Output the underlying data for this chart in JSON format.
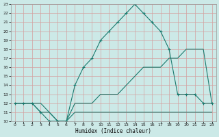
{
  "xlabel": "Humidex (Indice chaleur)",
  "background_color": "#cce9e7",
  "grid_color": "#b0d4d0",
  "line_color": "#1a7a6e",
  "xlim": [
    -0.5,
    23.5
  ],
  "ylim": [
    10,
    23
  ],
  "xticks": [
    0,
    1,
    2,
    3,
    4,
    5,
    6,
    7,
    8,
    9,
    10,
    11,
    12,
    13,
    14,
    15,
    16,
    17,
    18,
    19,
    20,
    21,
    22,
    23
  ],
  "yticks": [
    10,
    11,
    12,
    13,
    14,
    15,
    16,
    17,
    18,
    19,
    20,
    21,
    22,
    23
  ],
  "line1_x": [
    0,
    1,
    2,
    3,
    4,
    5,
    6,
    7,
    8,
    9,
    10,
    11,
    12,
    13,
    14,
    15,
    16,
    17,
    18,
    19,
    20,
    21,
    22,
    23
  ],
  "line1_y": [
    12,
    12,
    12,
    11,
    11,
    10,
    10,
    11,
    11,
    11,
    11,
    11,
    11,
    11,
    11,
    11,
    11,
    11,
    11,
    11,
    11,
    11,
    11,
    11
  ],
  "line2_x": [
    0,
    1,
    2,
    3,
    4,
    5,
    6,
    7,
    8,
    9,
    10,
    11,
    12,
    13,
    14,
    15,
    16,
    17,
    18,
    19,
    20,
    21,
    22,
    23
  ],
  "line2_y": [
    12,
    12,
    12,
    12,
    11,
    10,
    10,
    12,
    12,
    12,
    13,
    13,
    13,
    14,
    15,
    16,
    16,
    16,
    17,
    17,
    18,
    18,
    18,
    12
  ],
  "line3_x": [
    0,
    1,
    2,
    3,
    4,
    5,
    6,
    7,
    8,
    9,
    10,
    11,
    12,
    13,
    14,
    15,
    16,
    17,
    18,
    19,
    20,
    21,
    22,
    23
  ],
  "line3_y": [
    12,
    12,
    12,
    11,
    10,
    10,
    10,
    14,
    16,
    17,
    19,
    20,
    21,
    22,
    23,
    22,
    21,
    20,
    18,
    13,
    13,
    13,
    12,
    12
  ]
}
